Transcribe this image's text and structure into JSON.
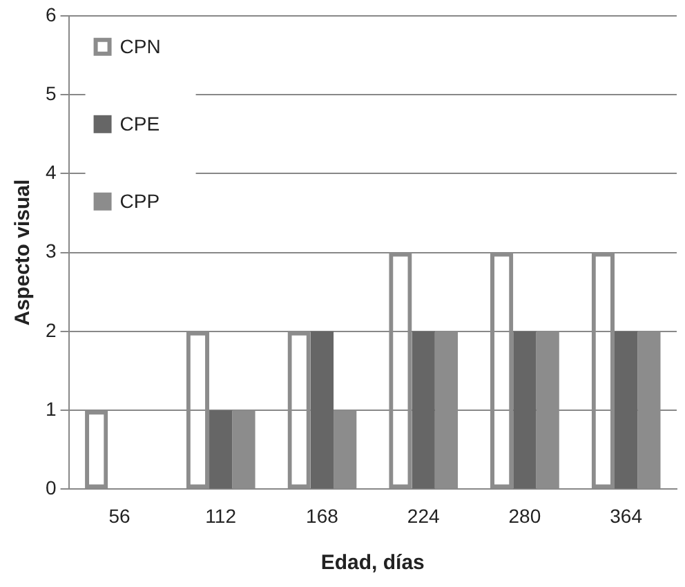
{
  "chart_data": {
    "type": "bar",
    "xlabel": "Edad, días",
    "ylabel": "Aspecto visual",
    "categories": [
      "56",
      "112",
      "168",
      "224",
      "280",
      "364"
    ],
    "series": [
      {
        "name": "CPN",
        "color": "#8c8c8c",
        "values": [
          1,
          2,
          2,
          3,
          3,
          3
        ]
      },
      {
        "name": "CPE",
        "color": "#666666",
        "values": [
          0,
          1,
          2,
          2,
          2,
          2
        ]
      },
      {
        "name": "CPP",
        "color": "#8c8c8c",
        "values": [
          0,
          1,
          1,
          2,
          2,
          2
        ]
      }
    ],
    "ylim": [
      0,
      6
    ],
    "yticks": [
      0,
      1,
      2,
      3,
      4,
      5,
      6
    ],
    "grid": "y",
    "legend": "top left"
  }
}
